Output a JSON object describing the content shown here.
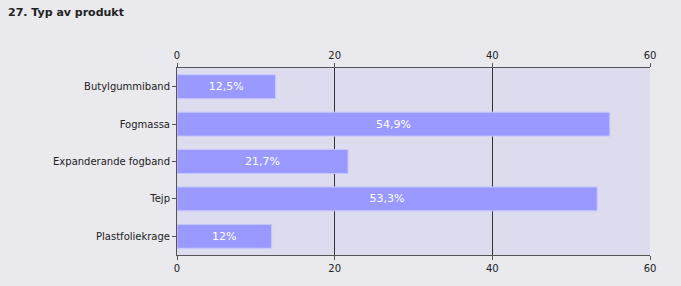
{
  "chart_data": {
    "type": "bar",
    "title": "27. Typ av produkt",
    "categories": [
      "Butylgummiband",
      "Fogmassa",
      "Expanderande fogband",
      "Tejp",
      "Plastfoliekrage"
    ],
    "values": [
      12.5,
      54.9,
      21.7,
      53.3,
      12
    ],
    "value_labels": [
      "12,5%",
      "54,9%",
      "21,7%",
      "53,3%",
      "12%"
    ],
    "color": "#9999ff",
    "orientation": "horizontal",
    "data_labels": true,
    "xlim": [
      0,
      60
    ],
    "xticks": [
      0,
      20,
      40,
      60
    ],
    "grid": true
  }
}
